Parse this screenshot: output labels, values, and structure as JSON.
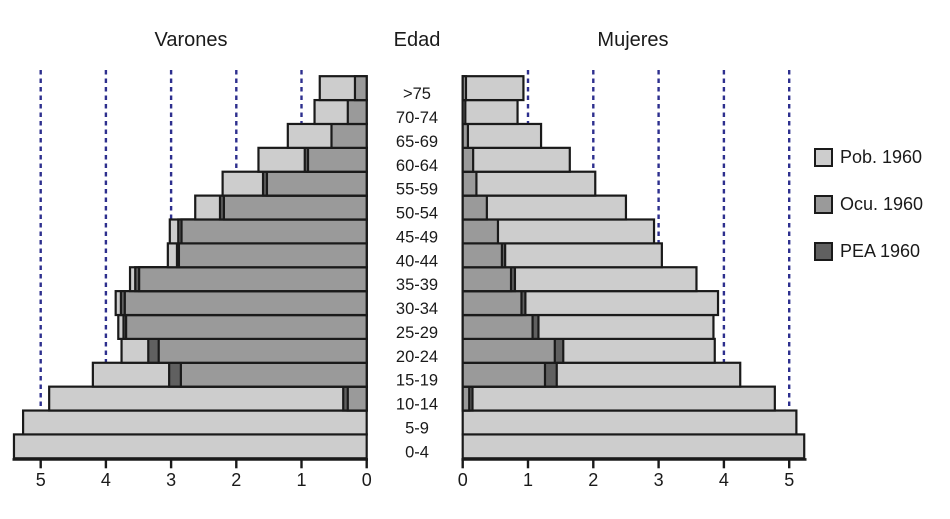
{
  "titles": {
    "left": "Varones",
    "center": "Edad",
    "right": "Mujeres"
  },
  "legend": {
    "items": [
      {
        "key": "pob",
        "label": "Pob. 1960"
      },
      {
        "key": "ocu",
        "label": "Ocu. 1960"
      },
      {
        "key": "pea",
        "label": "PEA 1960"
      }
    ]
  },
  "colors": {
    "pob": "#cdcdcd",
    "ocu": "#9a9a9a",
    "pea": "#606060",
    "border": "#1a1a1a",
    "gridline": "#2d2f8e",
    "axis": "#1a1a1a"
  },
  "chart_data": {
    "type": "bar",
    "subtype": "population-pyramid",
    "title": "",
    "xlabel": "",
    "ylabel": "Edad",
    "grid": "dashed-vertical",
    "legend_position": "right",
    "age_groups_bottom_to_top": [
      "0-4",
      "5-9",
      "10-14",
      "15-19",
      "20-24",
      "25-29",
      "30-34",
      "35-39",
      "40-44",
      "45-49",
      "50-54",
      "55-59",
      "60-64",
      "65-69",
      "70-74",
      ">75"
    ],
    "x_ticks": [
      0,
      1,
      2,
      3,
      4,
      5
    ],
    "xlim": [
      0,
      5.5
    ],
    "series": [
      {
        "name": "Varones",
        "side": "left",
        "pob": [
          5.41,
          5.27,
          4.87,
          4.2,
          3.76,
          3.81,
          3.85,
          3.63,
          3.05,
          3.02,
          2.63,
          2.21,
          1.66,
          1.21,
          0.8,
          0.72
        ],
        "pea": [
          0,
          0,
          0.36,
          3.03,
          3.35,
          3.73,
          3.77,
          3.55,
          2.91,
          2.89,
          2.25,
          1.59,
          0.95,
          0.54,
          0.29,
          0.18
        ],
        "ocu": [
          0,
          0,
          0.29,
          2.85,
          3.19,
          3.69,
          3.71,
          3.49,
          2.88,
          2.84,
          2.19,
          1.53,
          0.9,
          0.54,
          0.29,
          0.18
        ]
      },
      {
        "name": "Mujeres",
        "side": "right",
        "pob": [
          5.23,
          5.11,
          4.78,
          4.25,
          3.86,
          3.84,
          3.91,
          3.58,
          3.05,
          2.93,
          2.5,
          2.03,
          1.64,
          1.2,
          0.84,
          0.93
        ],
        "pea": [
          0,
          0,
          0.15,
          1.44,
          1.54,
          1.16,
          0.96,
          0.8,
          0.65,
          0.54,
          0.37,
          0.21,
          0.16,
          0.08,
          0.04,
          0.05
        ],
        "ocu": [
          0,
          0,
          0.1,
          1.26,
          1.41,
          1.07,
          0.9,
          0.74,
          0.6,
          0.54,
          0.37,
          0.21,
          0.16,
          0.08,
          0.04,
          0.05
        ]
      }
    ]
  }
}
